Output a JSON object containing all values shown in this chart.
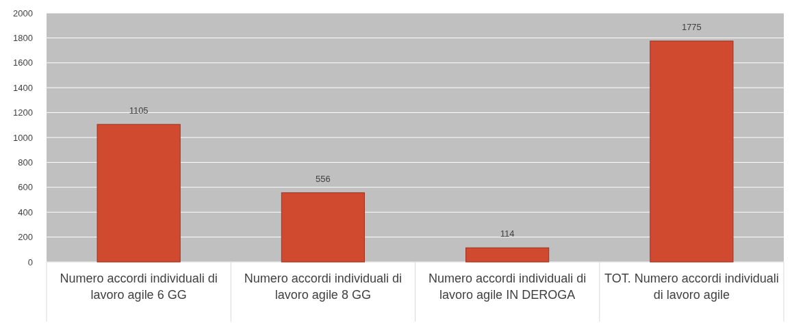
{
  "chart_data": {
    "type": "bar",
    "categories": [
      "Numero accordi individuali di lavoro agile 6 GG",
      "Numero accordi individuali di lavoro agile 8 GG",
      "Numero accordi individuali di lavoro agile IN DEROGA",
      "TOT. Numero accordi individuali di lavoro agile"
    ],
    "values": [
      1105,
      556,
      114,
      1775
    ],
    "color": "#d04a30",
    "ylim": [
      0,
      2000
    ],
    "yticks": [
      0,
      200,
      400,
      600,
      800,
      1000,
      1200,
      1400,
      1600,
      1800,
      2000
    ],
    "grid": "y",
    "data_labels": true
  }
}
